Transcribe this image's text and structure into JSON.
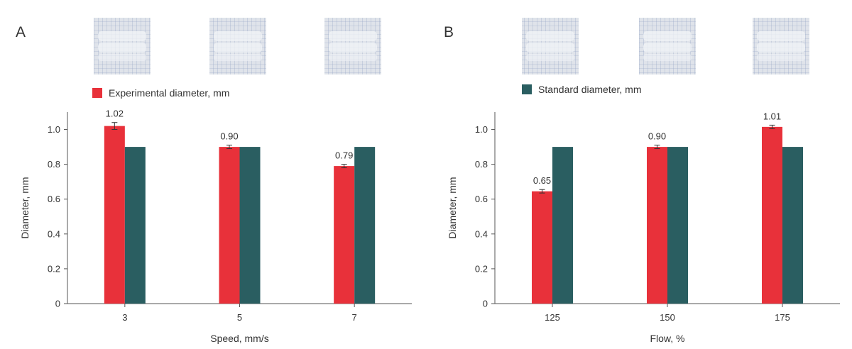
{
  "colors": {
    "experimental": "#e8313a",
    "standard": "#2a5e61",
    "axis": "#555555",
    "text": "#333333"
  },
  "legend": [
    {
      "label": "Experimental diameter, mm",
      "color": "#e8313a"
    },
    {
      "label": "Standard diameter, mm",
      "color": "#2a5e61"
    }
  ],
  "chart_data": [
    {
      "type": "bar",
      "panel": "A",
      "xlabel": "Speed, mm/s",
      "ylabel": "Diameter, mm",
      "ylim": [
        0,
        1.1
      ],
      "yticks": [
        "0",
        "0.2",
        "0.4",
        "0.6",
        "0.8",
        "1.0"
      ],
      "categories": [
        "3",
        "5",
        "7"
      ],
      "series": [
        {
          "name": "Experimental diameter, mm",
          "values": [
            1.02,
            0.9,
            0.79
          ],
          "errors": [
            0.02,
            0.01,
            0.01
          ],
          "labels": [
            "1.02",
            "0.90",
            "0.79"
          ]
        },
        {
          "name": "Standard diameter, mm",
          "values": [
            0.9,
            0.9,
            0.9
          ]
        }
      ],
      "grid": false,
      "images": [
        "sample-3",
        "sample-5",
        "sample-7"
      ]
    },
    {
      "type": "bar",
      "panel": "B",
      "xlabel": "Flow, %",
      "ylabel": "Diameter, mm",
      "ylim": [
        0,
        1.1
      ],
      "yticks": [
        "0",
        "0.2",
        "0.4",
        "0.6",
        "0.8",
        "1.0"
      ],
      "categories": [
        "125",
        "150",
        "175"
      ],
      "series": [
        {
          "name": "Experimental diameter, mm",
          "values": [
            0.645,
            0.9,
            1.015
          ],
          "errors": [
            0.01,
            0.01,
            0.01
          ],
          "labels": [
            "0.65",
            "0.90",
            "1.01"
          ]
        },
        {
          "name": "Standard diameter, mm",
          "values": [
            0.9,
            0.9,
            0.9
          ]
        }
      ],
      "grid": false,
      "images": [
        "sample-125",
        "sample-150",
        "sample-175"
      ]
    }
  ]
}
